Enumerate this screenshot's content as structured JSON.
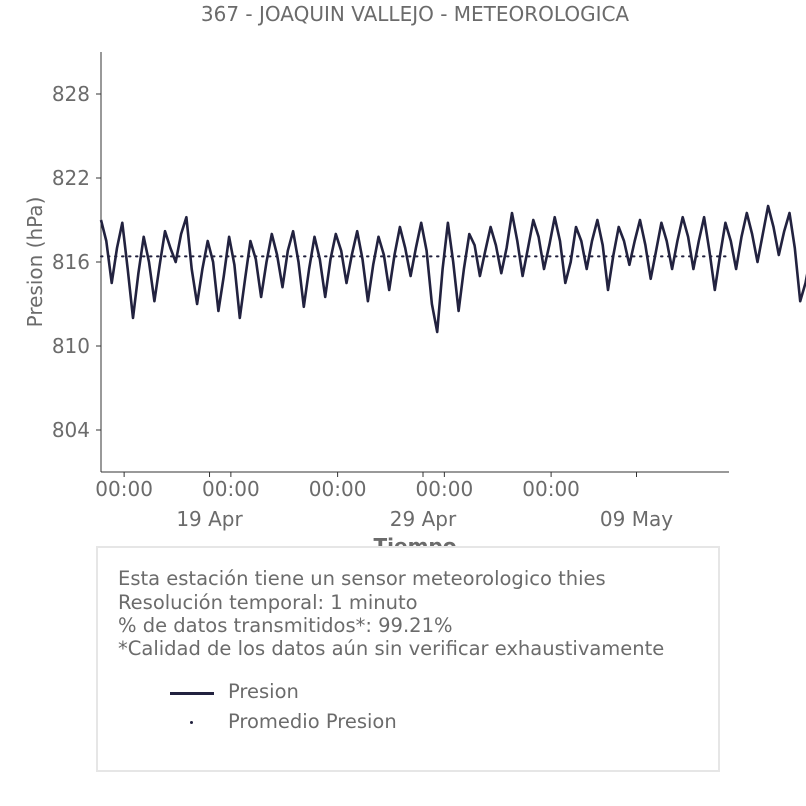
{
  "chart_data": {
    "type": "line",
    "title": "367 - JOAQUIN VALLEJO - METEOROLOGICA",
    "xlabel": "Tiempo",
    "ylabel": "Presion (hPa)",
    "ylim": [
      801,
      831
    ],
    "yticks": [
      804,
      810,
      816,
      822,
      828
    ],
    "xlim": [
      "2026-04-13T22:00",
      "2026-05-13T08:00"
    ],
    "xticks": [
      {
        "at": "2026-04-15T00:00",
        "label": "00:00"
      },
      {
        "at": "2026-04-20T00:00",
        "label": "00:00"
      },
      {
        "at": "2026-04-25T00:00",
        "label": "00:00"
      },
      {
        "at": "2026-04-30T00:00",
        "label": "00:00"
      },
      {
        "at": "2026-05-05T00:00",
        "label": "00:00"
      }
    ],
    "xticks_secondary": [
      {
        "at": "2026-04-19T00:00",
        "label": "19 Apr"
      },
      {
        "at": "2026-04-29T00:00",
        "label": "29 Apr"
      },
      {
        "at": "2026-05-09T00:00",
        "label": "09 May"
      }
    ],
    "grid": false,
    "series": [
      {
        "name": "Presion",
        "color": "#22223f",
        "style": "solid",
        "x_start": "2026-04-13T22:00",
        "x_step_hours": 6,
        "values": [
          819.0,
          817.5,
          814.5,
          817.0,
          818.8,
          815.5,
          812.0,
          815.2,
          817.8,
          816.0,
          813.2,
          815.8,
          818.2,
          817.0,
          816.0,
          818.0,
          819.2,
          815.5,
          813.0,
          815.5,
          817.5,
          816.0,
          812.5,
          815.0,
          817.8,
          815.8,
          812.0,
          814.8,
          817.5,
          816.2,
          813.5,
          816.0,
          818.0,
          816.5,
          814.2,
          816.8,
          818.2,
          816.0,
          812.8,
          815.5,
          817.8,
          816.2,
          813.5,
          816.2,
          818.0,
          816.8,
          814.5,
          816.5,
          818.2,
          816.2,
          813.2,
          815.8,
          817.8,
          816.5,
          814.0,
          816.5,
          818.5,
          817.0,
          815.0,
          817.0,
          818.8,
          816.8,
          813.0,
          811.0,
          815.5,
          818.8,
          816.0,
          812.5,
          815.5,
          818.0,
          817.2,
          815.0,
          816.8,
          818.5,
          817.2,
          815.2,
          817.0,
          819.5,
          817.5,
          815.0,
          817.0,
          819.0,
          817.8,
          815.5,
          817.2,
          819.2,
          817.5,
          814.5,
          816.0,
          818.5,
          817.5,
          815.5,
          817.5,
          819.0,
          817.2,
          814.0,
          816.5,
          818.5,
          817.5,
          815.8,
          817.5,
          819.0,
          817.2,
          814.8,
          816.8,
          818.8,
          817.5,
          815.5,
          817.5,
          819.2,
          817.8,
          815.5,
          817.5,
          819.2,
          816.8,
          814.0,
          816.5,
          818.8,
          817.5,
          815.5,
          817.8,
          819.5,
          818.0,
          816.0,
          818.0,
          820.0,
          818.5,
          816.5,
          818.2,
          819.5,
          817.0,
          813.2,
          814.5,
          816.5
        ]
      },
      {
        "name": "Promedio Presion",
        "color": "#22223f",
        "style": "dotted",
        "value": 816.4
      }
    ]
  },
  "info": {
    "line1": "Esta estación tiene un sensor meteorologico thies",
    "line2": "Resolución temporal: 1 minuto",
    "line3": "% de datos transmitidos*: 99.21%",
    "line4": "*Calidad de los datos aún sin verificar exhaustivamente"
  },
  "legend": {
    "line_label": "Presion",
    "dot_label": "Promedio Presion"
  }
}
